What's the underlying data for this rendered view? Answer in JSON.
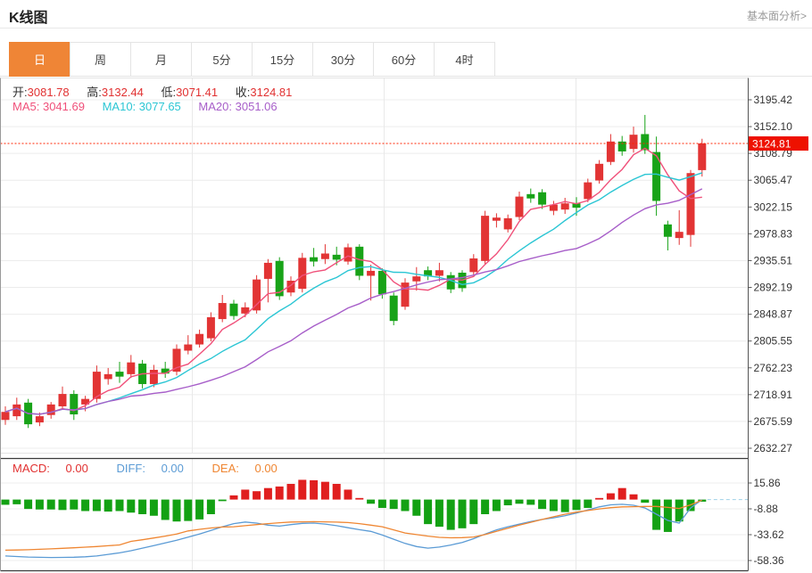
{
  "header": {
    "title": "K线图",
    "link": "基本面分析>"
  },
  "tabs": {
    "items": [
      "日",
      "周",
      "月",
      "5分",
      "15分",
      "30分",
      "60分",
      "4时"
    ],
    "active_index": 0
  },
  "ohlc": {
    "open_label": "开:",
    "open": "3081.78",
    "high_label": "高:",
    "high": "3132.44",
    "low_label": "低:",
    "low": "3071.41",
    "close_label": "收:",
    "close": "3124.81"
  },
  "ma_row": {
    "ma5_label": "MA5:",
    "ma5": "3041.69",
    "ma10_label": "MA10:",
    "ma10": "3077.65",
    "ma20_label": "MA20:",
    "ma20": "3051.06"
  },
  "macd_row": {
    "macd_label": "MACD:",
    "macd": "0.00",
    "diff_label": "DIFF:",
    "diff": "0.00",
    "dea_label": "DEA:",
    "dea": "0.00"
  },
  "price_marker": {
    "value": "3124.81"
  },
  "colors": {
    "up": "#e23434",
    "down": "#18a318",
    "ma5": "#f0507a",
    "ma10": "#2bc6d4",
    "ma20": "#a75ec9",
    "diff": "#5b9bd5",
    "dea": "#ef8632",
    "hist_up": "#e01f1f",
    "hist_down": "#13a113",
    "badge": "#ee1100",
    "price_line": "#ff2200",
    "grid": "#ececec",
    "axis": "#555",
    "label": "#333",
    "tab_active": "#ef8536",
    "zero_dash": "#9fd0e8"
  },
  "chart_data": {
    "type": "candlestick+macd",
    "title": "K线图",
    "price_axis_ticks": [
      "3195.42",
      "3152.10",
      "3108.79",
      "3065.47",
      "3022.15",
      "2978.83",
      "2935.51",
      "2892.19",
      "2848.87",
      "2805.55",
      "2762.23",
      "2718.91",
      "2675.59",
      "2632.27"
    ],
    "macd_axis_ticks": [
      "15.86",
      "-8.88",
      "-33.62",
      "-58.36"
    ],
    "price_range": [
      2632.27,
      3195.42
    ],
    "macd_range": [
      -58.36,
      15.86
    ],
    "current_price": 3124.81,
    "grid": true,
    "legend": [
      "MA5",
      "MA10",
      "MA20",
      "MACD",
      "DIFF",
      "DEA"
    ],
    "ma_periods": [
      5,
      10,
      20
    ],
    "candles": [
      [
        2678,
        2700,
        2670,
        2691
      ],
      [
        2684,
        2714,
        2678,
        2703
      ],
      [
        2706,
        2712,
        2665,
        2671
      ],
      [
        2674,
        2690,
        2668,
        2684
      ],
      [
        2686,
        2707,
        2680,
        2703
      ],
      [
        2700,
        2732,
        2696,
        2720
      ],
      [
        2720,
        2726,
        2678,
        2687
      ],
      [
        2703,
        2717,
        2692,
        2712
      ],
      [
        2712,
        2766,
        2706,
        2756
      ],
      [
        2744,
        2762,
        2735,
        2752
      ],
      [
        2756,
        2772,
        2738,
        2748
      ],
      [
        2752,
        2783,
        2746,
        2771
      ],
      [
        2769,
        2775,
        2729,
        2736
      ],
      [
        2736,
        2767,
        2731,
        2759
      ],
      [
        2761,
        2772,
        2746,
        2753
      ],
      [
        2756,
        2800,
        2750,
        2793
      ],
      [
        2790,
        2815,
        2784,
        2800
      ],
      [
        2800,
        2824,
        2795,
        2817
      ],
      [
        2810,
        2852,
        2805,
        2844
      ],
      [
        2841,
        2880,
        2836,
        2867
      ],
      [
        2866,
        2872,
        2840,
        2846
      ],
      [
        2850,
        2868,
        2844,
        2860
      ],
      [
        2855,
        2912,
        2850,
        2905
      ],
      [
        2906,
        2938,
        2868,
        2932
      ],
      [
        2935,
        2941,
        2872,
        2878
      ],
      [
        2884,
        2910,
        2878,
        2903
      ],
      [
        2890,
        2948,
        2884,
        2940
      ],
      [
        2941,
        2956,
        2926,
        2934
      ],
      [
        2938,
        2962,
        2930,
        2947
      ],
      [
        2945,
        2958,
        2928,
        2937
      ],
      [
        2934,
        2963,
        2929,
        2957
      ],
      [
        2958,
        2962,
        2904,
        2911
      ],
      [
        2911,
        2929,
        2871,
        2919
      ],
      [
        2919,
        2923,
        2874,
        2881
      ],
      [
        2879,
        2884,
        2831,
        2838
      ],
      [
        2861,
        2907,
        2856,
        2900
      ],
      [
        2902,
        2925,
        2887,
        2910
      ],
      [
        2920,
        2926,
        2904,
        2910
      ],
      [
        2911,
        2932,
        2902,
        2920
      ],
      [
        2912,
        2917,
        2883,
        2889
      ],
      [
        2916,
        2920,
        2885,
        2891
      ],
      [
        2917,
        2946,
        2911,
        2939
      ],
      [
        2935,
        3016,
        2929,
        3008
      ],
      [
        3000,
        3012,
        2989,
        3005
      ],
      [
        2986,
        3010,
        2981,
        3004
      ],
      [
        3006,
        3047,
        3001,
        3039
      ],
      [
        3043,
        3052,
        3029,
        3036
      ],
      [
        3046,
        3051,
        3019,
        3026
      ],
      [
        3016,
        3032,
        3009,
        3026
      ],
      [
        3018,
        3037,
        3011,
        3028
      ],
      [
        3028,
        3038,
        3008,
        3021
      ],
      [
        3035,
        3068,
        3030,
        3062
      ],
      [
        3065,
        3098,
        3060,
        3092
      ],
      [
        3095,
        3140,
        3090,
        3128
      ],
      [
        3128,
        3137,
        3105,
        3112
      ],
      [
        3116,
        3152,
        3110,
        3139
      ],
      [
        3140,
        3171,
        3108,
        3114
      ],
      [
        3111,
        3136,
        3008,
        3032
      ],
      [
        2994,
        3000,
        2952,
        2974
      ],
      [
        2972,
        3017,
        2961,
        2982
      ],
      [
        2977,
        3082,
        2958,
        3077
      ],
      [
        3081.78,
        3132.44,
        3071.41,
        3124.81
      ]
    ],
    "macd": {
      "hist": [
        -5,
        -4.5,
        -9,
        -9.5,
        -9.5,
        -10,
        -9.5,
        -11,
        -11,
        -11.5,
        -11,
        -12.5,
        -14,
        -15.5,
        -19.5,
        -21,
        -20.5,
        -19,
        -14,
        -1.5,
        4,
        9.5,
        8,
        11,
        12.5,
        15,
        18.9,
        18.5,
        17,
        15,
        9.5,
        1.5,
        -4,
        -8,
        -9,
        -11,
        -15.5,
        -23.5,
        -26,
        -29,
        -27.5,
        -23.5,
        -14,
        -11,
        -5.5,
        -4,
        -5,
        -9,
        -11,
        -12,
        -10,
        -8,
        1.5,
        6,
        11,
        5,
        -3,
        -29,
        -31,
        -21,
        -11,
        -2
      ],
      "diff": [
        -54,
        -54.5,
        -55,
        -55.3,
        -55.5,
        -55.4,
        -55.2,
        -54.8,
        -54,
        -52.5,
        -51,
        -49,
        -46.5,
        -44,
        -41.5,
        -39,
        -36,
        -33,
        -29.5,
        -26,
        -23,
        -21.5,
        -22.5,
        -24.5,
        -25.4,
        -24,
        -22.8,
        -22.5,
        -23.5,
        -25,
        -27,
        -28.8,
        -30.5,
        -34,
        -38,
        -42,
        -45,
        -46.5,
        -45.5,
        -43.5,
        -41,
        -37.5,
        -33,
        -29,
        -26,
        -23.5,
        -21,
        -19,
        -17.5,
        -15.5,
        -13,
        -10,
        -7,
        -5,
        -4.5,
        -5.5,
        -8,
        -14,
        -20,
        -22.5,
        -8,
        0
      ],
      "dea": [
        -48.5,
        -48.3,
        -48,
        -47.6,
        -47.2,
        -46.7,
        -46.2,
        -45.6,
        -45,
        -44.2,
        -43.4,
        -40,
        -38.5,
        -36.8,
        -35,
        -33,
        -30,
        -28.5,
        -27.2,
        -26.3,
        -26,
        -25,
        -24,
        -23,
        -22.2,
        -21.5,
        -21.3,
        -21.2,
        -21.3,
        -21.6,
        -22,
        -23,
        -24.5,
        -26,
        -29,
        -32,
        -33.5,
        -35,
        -36.2,
        -36.6,
        -36.4,
        -35.8,
        -33.5,
        -30.5,
        -27.5,
        -24.5,
        -21.8,
        -19,
        -16.5,
        -14,
        -12,
        -10.5,
        -9,
        -7.8,
        -7,
        -6.8,
        -6.6,
        -6.6,
        -7.5,
        -8.5,
        -5,
        -0.5
      ]
    }
  }
}
